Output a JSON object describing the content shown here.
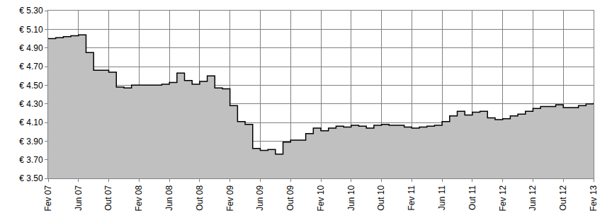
{
  "chart_data": {
    "type": "area",
    "line_style": "step",
    "color": "#c0c0c0",
    "grid": true,
    "categories": [
      "Fev 07",
      null,
      null,
      null,
      "Jun 07",
      null,
      null,
      null,
      "Out 07",
      null,
      null,
      null,
      "Fev 08",
      null,
      null,
      null,
      "Jun 08",
      null,
      null,
      null,
      "Out 08",
      null,
      null,
      null,
      "Fev 09",
      null,
      null,
      null,
      "Jun 09",
      null,
      null,
      null,
      "Out 09",
      null,
      null,
      null,
      "Fev 10",
      null,
      null,
      null,
      "Jun 10",
      null,
      null,
      null,
      "Out 10",
      null,
      null,
      null,
      "Fev 11",
      null,
      null,
      null,
      "Jun 11",
      null,
      null,
      null,
      "Out 11",
      null,
      null,
      null,
      "Fev 12",
      null,
      null,
      null,
      "Jun 12",
      null,
      null,
      null,
      "Out 12",
      null,
      null,
      null,
      "Fev 13"
    ],
    "values": [
      5.0,
      5.01,
      5.02,
      5.03,
      5.04,
      4.85,
      4.66,
      4.66,
      4.64,
      4.48,
      4.47,
      4.5,
      4.5,
      4.5,
      4.5,
      4.51,
      4.53,
      4.63,
      4.55,
      4.51,
      4.54,
      4.6,
      4.47,
      4.46,
      4.28,
      4.11,
      4.08,
      3.82,
      3.8,
      3.81,
      3.76,
      3.89,
      3.91,
      3.91,
      3.98,
      4.04,
      4.01,
      4.04,
      4.06,
      4.05,
      4.07,
      4.06,
      4.04,
      4.07,
      4.08,
      4.07,
      4.07,
      4.05,
      4.04,
      4.05,
      4.06,
      4.07,
      4.11,
      4.17,
      4.22,
      4.18,
      4.21,
      4.22,
      4.15,
      4.13,
      4.14,
      4.17,
      4.19,
      4.22,
      4.25,
      4.27,
      4.27,
      4.29,
      4.26,
      4.26,
      4.28,
      4.3,
      4.31
    ],
    "ylim": [
      3.5,
      5.3
    ],
    "yticks": [
      {
        "value": 3.5,
        "label": "€ 3.50"
      },
      {
        "value": 3.7,
        "label": "€ 3.70"
      },
      {
        "value": 3.9,
        "label": "€ 3.90"
      },
      {
        "value": 4.1,
        "label": "€ 4.10"
      },
      {
        "value": 4.3,
        "label": "€ 4.30"
      },
      {
        "value": 4.5,
        "label": "€ 4.50"
      },
      {
        "value": 4.7,
        "label": "€ 4.70"
      },
      {
        "value": 4.9,
        "label": "€ 4.90"
      },
      {
        "value": 5.1,
        "label": "€ 5.10"
      },
      {
        "value": 5.3,
        "label": "€ 5.30"
      }
    ]
  }
}
